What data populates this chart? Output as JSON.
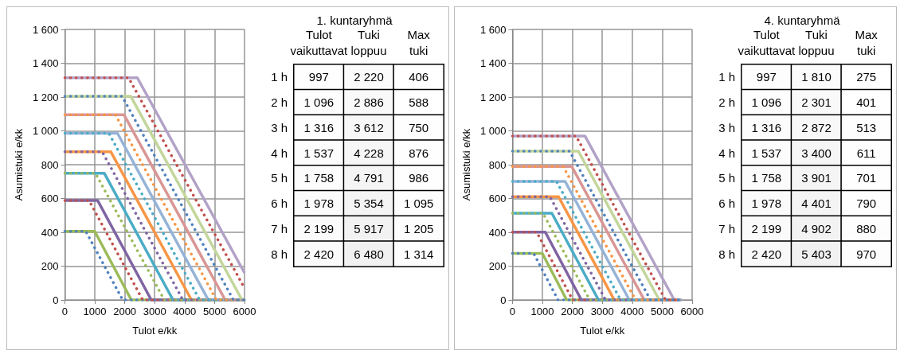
{
  "chart_data": [
    {
      "type": "line",
      "xlabel": "Tulot e/kk",
      "ylabel": "Asumistuki e/kk",
      "xlim": [
        0,
        6000
      ],
      "xticks": [
        0,
        1000,
        2000,
        3000,
        4000,
        5000,
        6000
      ],
      "ylim": [
        0,
        1600
      ],
      "yticks": [
        0,
        200,
        400,
        600,
        800,
        {
          "value": 1000,
          "label": "1 000"
        },
        {
          "value": 1200,
          "label": "1 200"
        },
        {
          "value": 1400,
          "label": "1 400"
        },
        {
          "value": 1600,
          "label": "1 600"
        }
      ],
      "grid": true,
      "marker": "none",
      "series": [
        {
          "color": "#9bbb59",
          "line_style": "solid",
          "x": [
            0,
            997,
            2220,
            6000
          ],
          "values": [
            406,
            406,
            0,
            0
          ]
        },
        {
          "color": "#8064a2",
          "line_style": "solid",
          "x": [
            0,
            1096,
            2886,
            6000
          ],
          "values": [
            588,
            588,
            0,
            0
          ]
        },
        {
          "color": "#4bacc6",
          "line_style": "solid",
          "x": [
            0,
            1316,
            3612,
            6000
          ],
          "values": [
            750,
            750,
            0,
            0
          ]
        },
        {
          "color": "#f79646",
          "line_style": "solid",
          "x": [
            0,
            1537,
            4228,
            6000
          ],
          "values": [
            876,
            876,
            0,
            0
          ]
        },
        {
          "color": "#95b3d7",
          "line_style": "solid",
          "x": [
            0,
            1758,
            4791,
            6000
          ],
          "values": [
            986,
            986,
            0,
            0
          ]
        },
        {
          "color": "#d99694",
          "line_style": "solid",
          "x": [
            0,
            1978,
            5354,
            6000
          ],
          "values": [
            1095,
            1095,
            0,
            0
          ]
        },
        {
          "color": "#c3d69b",
          "line_style": "solid",
          "x": [
            0,
            2199,
            5917,
            6000
          ],
          "values": [
            1205,
            1205,
            0,
            0
          ]
        },
        {
          "color": "#b3a2c7",
          "line_style": "solid",
          "x": [
            0,
            2420,
            6000
          ],
          "values": [
            1314,
            1314,
            160
          ]
        },
        {
          "color": "#4f81bd",
          "line_style": "dotted",
          "x": [
            0,
            700,
            1930,
            6000
          ],
          "values": [
            406,
            406,
            0,
            0
          ]
        },
        {
          "color": "#c0504d",
          "line_style": "dotted",
          "x": [
            0,
            810,
            2600,
            6000
          ],
          "values": [
            588,
            588,
            0,
            0
          ]
        },
        {
          "color": "#9bbb59",
          "line_style": "dotted",
          "x": [
            0,
            1020,
            3320,
            6000
          ],
          "values": [
            750,
            750,
            0,
            0
          ]
        },
        {
          "color": "#8064a2",
          "line_style": "dotted",
          "x": [
            0,
            1250,
            3940,
            6000
          ],
          "values": [
            876,
            876,
            0,
            0
          ]
        },
        {
          "color": "#4bacc6",
          "line_style": "dotted",
          "x": [
            0,
            1470,
            4500,
            6000
          ],
          "values": [
            986,
            986,
            0,
            0
          ]
        },
        {
          "color": "#f79646",
          "line_style": "dotted",
          "x": [
            0,
            1690,
            5060,
            6000
          ],
          "values": [
            1095,
            1095,
            0,
            0
          ]
        },
        {
          "color": "#4f81bd",
          "line_style": "dotted",
          "x": [
            0,
            1910,
            5630,
            6000
          ],
          "values": [
            1205,
            1205,
            0,
            0
          ]
        },
        {
          "color": "#c0504d",
          "line_style": "dotted",
          "x": [
            0,
            2130,
            6000
          ],
          "values": [
            1314,
            1314,
            70
          ]
        }
      ]
    },
    {
      "type": "heatmap",
      "title": "1. kuntaryhmä",
      "categories": [
        "Tulot vaikuttavat",
        "Tuki loppuu",
        "Max tuki"
      ],
      "y_categories": [
        "1 h",
        "2 h",
        "3 h",
        "4 h",
        "5 h",
        "6 h",
        "7 h",
        "8 h"
      ],
      "cells": [
        [
          997,
          2220,
          406
        ],
        [
          1096,
          2886,
          588
        ],
        [
          1316,
          3612,
          750
        ],
        [
          1537,
          4228,
          876
        ],
        [
          1758,
          4791,
          986
        ],
        [
          1978,
          5354,
          1095
        ],
        [
          2199,
          5917,
          1205
        ],
        [
          2420,
          6480,
          1314
        ]
      ],
      "cell_labels": [
        [
          "997",
          "2 220",
          "406"
        ],
        [
          "1 096",
          "2 886",
          "588"
        ],
        [
          "1 316",
          "3 612",
          "750"
        ],
        [
          "1 537",
          "4 228",
          "876"
        ],
        [
          "1 758",
          "4 791",
          "986"
        ],
        [
          "1 978",
          "5 354",
          "1 095"
        ],
        [
          "2 199",
          "5 917",
          "1 205"
        ],
        [
          "2 420",
          "6 480",
          "1 314"
        ]
      ]
    },
    {
      "type": "line",
      "xlabel": "Tulot e/kk",
      "ylabel": "Asumistuki e/kk",
      "xlim": [
        0,
        6000
      ],
      "xticks": [
        0,
        1000,
        2000,
        3000,
        4000,
        5000,
        6000
      ],
      "ylim": [
        0,
        1600
      ],
      "yticks": [
        0,
        200,
        400,
        600,
        800,
        {
          "value": 1000,
          "label": "1 000"
        },
        {
          "value": 1200,
          "label": "1 200"
        },
        {
          "value": 1400,
          "label": "1 400"
        },
        {
          "value": 1600,
          "label": "1 600"
        }
      ],
      "grid": true,
      "marker": "none",
      "series": [
        {
          "color": "#9bbb59",
          "line_style": "solid",
          "x": [
            0,
            997,
            1810,
            5650
          ],
          "values": [
            275,
            275,
            0,
            0
          ]
        },
        {
          "color": "#8064a2",
          "line_style": "solid",
          "x": [
            0,
            1096,
            2301,
            5650
          ],
          "values": [
            401,
            401,
            0,
            0
          ]
        },
        {
          "color": "#4bacc6",
          "line_style": "solid",
          "x": [
            0,
            1316,
            2872,
            5650
          ],
          "values": [
            513,
            513,
            0,
            0
          ]
        },
        {
          "color": "#f79646",
          "line_style": "solid",
          "x": [
            0,
            1537,
            3400,
            5650
          ],
          "values": [
            611,
            611,
            0,
            0
          ]
        },
        {
          "color": "#95b3d7",
          "line_style": "solid",
          "x": [
            0,
            1758,
            3901,
            5650
          ],
          "values": [
            701,
            701,
            0,
            0
          ]
        },
        {
          "color": "#d99694",
          "line_style": "solid",
          "x": [
            0,
            1978,
            4401,
            5650
          ],
          "values": [
            790,
            790,
            0,
            0
          ]
        },
        {
          "color": "#c3d69b",
          "line_style": "solid",
          "x": [
            0,
            2199,
            4902,
            5650
          ],
          "values": [
            880,
            880,
            0,
            0
          ]
        },
        {
          "color": "#b3a2c7",
          "line_style": "solid",
          "x": [
            0,
            2420,
            5403,
            5650
          ],
          "values": [
            970,
            970,
            0,
            0
          ]
        },
        {
          "color": "#4f81bd",
          "line_style": "dotted",
          "x": [
            0,
            710,
            1520,
            5600
          ],
          "values": [
            275,
            275,
            0,
            0
          ]
        },
        {
          "color": "#c0504d",
          "line_style": "dotted",
          "x": [
            0,
            810,
            2010,
            5600
          ],
          "values": [
            401,
            401,
            0,
            0
          ]
        },
        {
          "color": "#9bbb59",
          "line_style": "dotted",
          "x": [
            0,
            1020,
            2580,
            5600
          ],
          "values": [
            513,
            513,
            0,
            0
          ]
        },
        {
          "color": "#8064a2",
          "line_style": "dotted",
          "x": [
            0,
            1250,
            3110,
            5600
          ],
          "values": [
            611,
            611,
            0,
            0
          ]
        },
        {
          "color": "#4bacc6",
          "line_style": "dotted",
          "x": [
            0,
            1470,
            3610,
            5600
          ],
          "values": [
            701,
            701,
            0,
            0
          ]
        },
        {
          "color": "#f79646",
          "line_style": "dotted",
          "x": [
            0,
            1690,
            4110,
            5600
          ],
          "values": [
            790,
            790,
            0,
            0
          ]
        },
        {
          "color": "#4f81bd",
          "line_style": "dotted",
          "x": [
            0,
            1910,
            4610,
            5600
          ],
          "values": [
            880,
            880,
            0,
            0
          ]
        },
        {
          "color": "#c0504d",
          "line_style": "dotted",
          "x": [
            0,
            2120,
            5110,
            5600
          ],
          "values": [
            970,
            970,
            0,
            0
          ]
        }
      ]
    },
    {
      "type": "heatmap",
      "title": "4. kuntaryhmä",
      "categories": [
        "Tulot vaikuttavat",
        "Tuki loppuu",
        "Max tuki"
      ],
      "y_categories": [
        "1 h",
        "2 h",
        "3 h",
        "4 h",
        "5 h",
        "6 h",
        "7 h",
        "8 h"
      ],
      "cells": [
        [
          997,
          1810,
          275
        ],
        [
          1096,
          2301,
          401
        ],
        [
          1316,
          2872,
          513
        ],
        [
          1537,
          3400,
          611
        ],
        [
          1758,
          3901,
          701
        ],
        [
          1978,
          4401,
          790
        ],
        [
          2199,
          4902,
          880
        ],
        [
          2420,
          5403,
          970
        ]
      ],
      "cell_labels": [
        [
          "997",
          "1 810",
          "275"
        ],
        [
          "1 096",
          "2 301",
          "401"
        ],
        [
          "1 316",
          "2 872",
          "513"
        ],
        [
          "1 537",
          "3 400",
          "611"
        ],
        [
          "1 758",
          "3 901",
          "701"
        ],
        [
          "1 978",
          "4 401",
          "790"
        ],
        [
          "2 199",
          "4 902",
          "880"
        ],
        [
          "2 420",
          "5 403",
          "970"
        ]
      ]
    }
  ]
}
